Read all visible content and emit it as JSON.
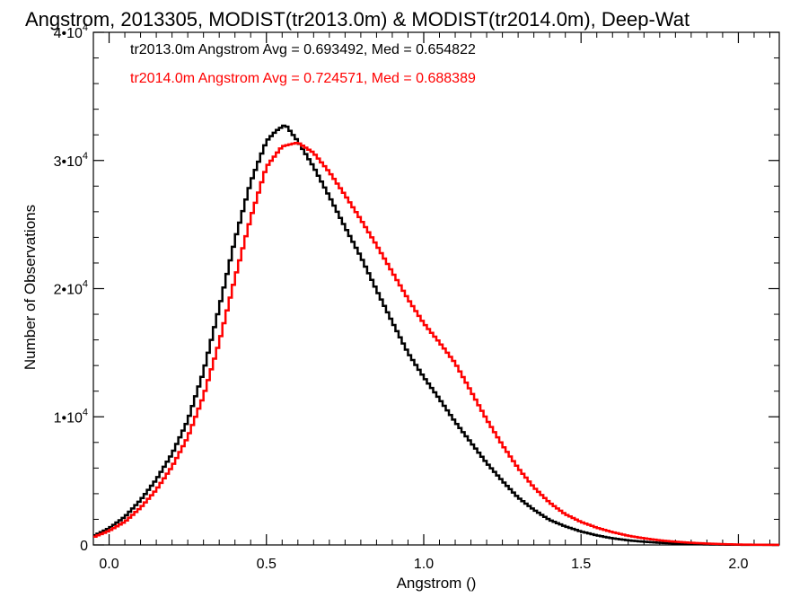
{
  "chart_data": {
    "type": "line",
    "title": "Angstrom, 2013305, MODIST(tr2013.0m) & MODIST(tr2014.0m), Deep-Wat",
    "xlabel": "Angstrom ()",
    "ylabel": "Number of Observations",
    "xlim": [
      -0.05,
      2.13
    ],
    "ylim": [
      0,
      40000
    ],
    "x_ticks": [
      {
        "value": 0.0,
        "label": "0.0"
      },
      {
        "value": 0.5,
        "label": "0.5"
      },
      {
        "value": 1.0,
        "label": "1.0"
      },
      {
        "value": 1.5,
        "label": "1.5"
      },
      {
        "value": 2.0,
        "label": "2.0"
      }
    ],
    "y_ticks": [
      {
        "value": 0,
        "label": "0"
      },
      {
        "value": 10000,
        "label": "1•10",
        "exp": "4"
      },
      {
        "value": 20000,
        "label": "2•10",
        "exp": "4"
      },
      {
        "value": 30000,
        "label": "3•10",
        "exp": "4"
      },
      {
        "value": 40000,
        "label": "4•10",
        "exp": "4"
      }
    ],
    "legend_position": "top-left",
    "grid": false,
    "series": [
      {
        "name": "tr2013.0m",
        "legend": "tr2013.0m Angstrom Avg = 0.693492, Med = 0.654822",
        "color": "#000000",
        "x": [
          -0.05,
          0.0,
          0.05,
          0.1,
          0.15,
          0.2,
          0.25,
          0.3,
          0.35,
          0.4,
          0.45,
          0.5,
          0.53,
          0.56,
          0.6,
          0.65,
          0.7,
          0.75,
          0.8,
          0.85,
          0.9,
          0.95,
          1.0,
          1.05,
          1.1,
          1.15,
          1.2,
          1.25,
          1.3,
          1.35,
          1.4,
          1.45,
          1.5,
          1.55,
          1.6,
          1.65,
          1.7,
          1.75,
          1.8,
          1.85,
          1.9,
          1.95,
          2.0,
          2.05,
          2.13
        ],
        "y": [
          700,
          1300,
          2200,
          3500,
          5100,
          7100,
          9700,
          13500,
          18500,
          23800,
          28300,
          31500,
          32300,
          32800,
          31500,
          29500,
          27200,
          24800,
          22500,
          19900,
          17400,
          15000,
          13100,
          11400,
          9600,
          8000,
          6400,
          5000,
          3700,
          2750,
          1950,
          1450,
          1050,
          750,
          520,
          360,
          250,
          170,
          110,
          70,
          45,
          25,
          15,
          8,
          3
        ]
      },
      {
        "name": "tr2014.0m",
        "legend": "tr2014.0m Angstrom Avg = 0.724571, Med = 0.688389",
        "color": "#ff0000",
        "x": [
          -0.05,
          0.0,
          0.05,
          0.1,
          0.15,
          0.2,
          0.25,
          0.3,
          0.35,
          0.4,
          0.45,
          0.5,
          0.55,
          0.6,
          0.65,
          0.7,
          0.75,
          0.8,
          0.85,
          0.9,
          0.95,
          1.0,
          1.05,
          1.1,
          1.15,
          1.2,
          1.25,
          1.3,
          1.35,
          1.4,
          1.45,
          1.5,
          1.55,
          1.6,
          1.65,
          1.7,
          1.75,
          1.8,
          1.85,
          1.9,
          1.95,
          2.0,
          2.05,
          2.13
        ],
        "y": [
          600,
          1100,
          1800,
          2900,
          4300,
          6100,
          8400,
          11600,
          15800,
          20800,
          25500,
          29500,
          31100,
          31400,
          30600,
          29100,
          27300,
          25400,
          23400,
          21300,
          19200,
          17300,
          15800,
          14200,
          12000,
          9800,
          7800,
          6000,
          4500,
          3300,
          2400,
          1800,
          1350,
          1000,
          720,
          520,
          360,
          250,
          170,
          110,
          65,
          35,
          18,
          5
        ]
      }
    ]
  }
}
